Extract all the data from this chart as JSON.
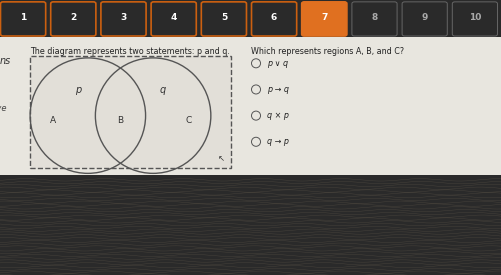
{
  "nav_buttons": [
    "1",
    "2",
    "3",
    "4",
    "5",
    "6",
    "7",
    "8",
    "9",
    "10"
  ],
  "nav_highlight_idx": 6,
  "nav_bg": "#2a2a2a",
  "nav_highlight_color": "#e07020",
  "content_bg": "#e8e6e0",
  "bottom_bg": "#8a7f70",
  "question_text": "The diagram represents two statements: p and q.",
  "right_question": "Which represents regions A, B, and C?",
  "options": [
    "p ∨ q",
    "p → q",
    "q × p",
    "q → p"
  ],
  "text_color": "#222222",
  "circle_color": "#555555",
  "rect_color": "#555555"
}
